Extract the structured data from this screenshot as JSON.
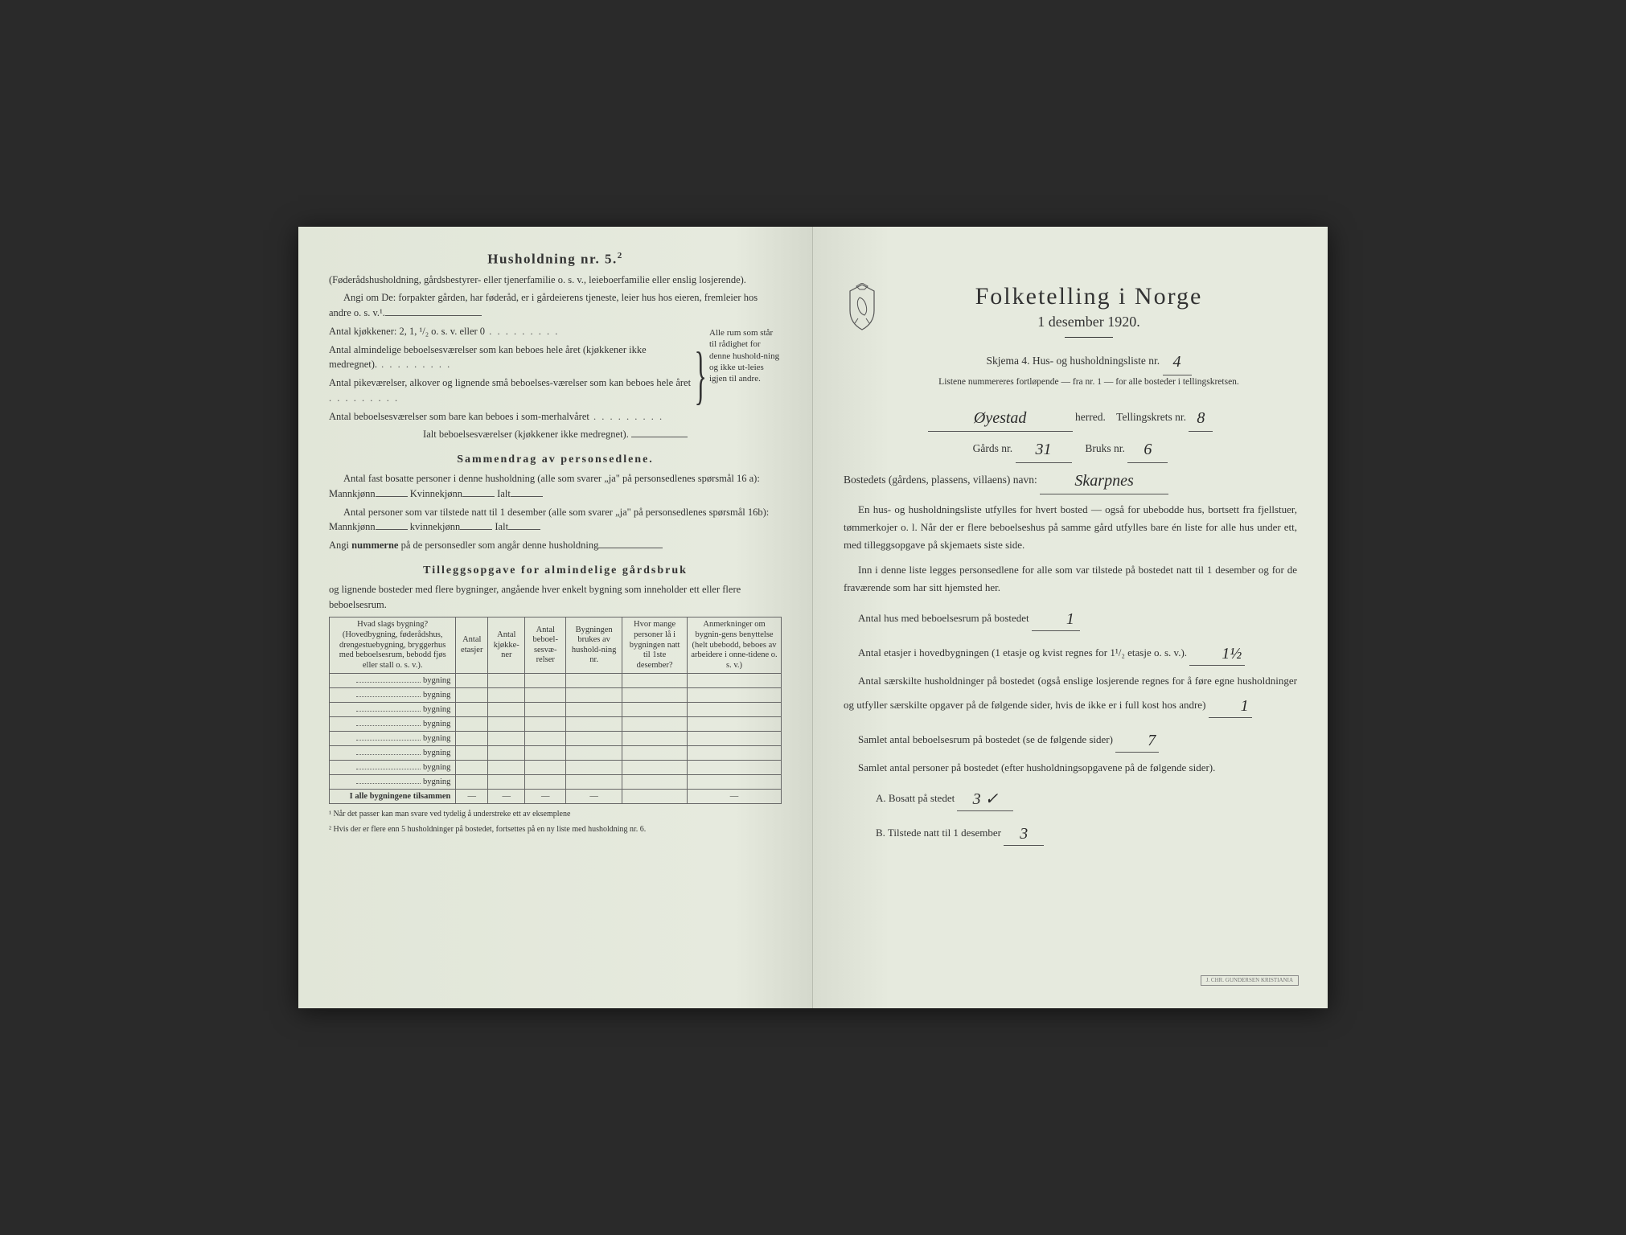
{
  "left": {
    "title": "Husholdning nr. 5.",
    "title_sup": "2",
    "intro1": "(Føderådshusholdning, gårdsbestyrer- eller tjenerfamilie o. s. v., leieboerfamilie eller enslig losjerende).",
    "intro2": "Angi om De:  forpakter gården, har føderåd, er i gårdeierens tjeneste, leier hus hos eieren, fremleier hos andre o. s. v.¹.",
    "kitchens": "Antal kjøkkener: 2, 1, ¹/₂ o. s. v. eller 0",
    "rooms1": "Antal almindelige beboelsesværelser som kan beboes hele året (kjøkkener ikke medregnet).",
    "rooms2": "Antal pikeværelser, alkover og lignende små beboelses-værelser som kan beboes hele året",
    "rooms3": "Antal beboelsesværelser som bare kan beboes i som-merhalvåret",
    "brace_text": "Alle rum som står til rådighet for denne hushold-ning og ikke ut-leies igjen til andre.",
    "ialt": "Ialt beboelsesværelser (kjøkkener ikke medregnet).",
    "section2": "Sammendrag av personsedlene.",
    "s2_l1": "Antal fast bosatte personer i denne husholdning (alle som svarer „ja\" på personsedlenes spørsmål 16 a): Mannkjønn",
    "s2_kvinne": "Kvinnekjønn",
    "s2_ialt": "Ialt",
    "s2_l2": "Antal personer som var tilstede natt til 1 desember (alle som svarer „ja\" på personsedlenes spørsmål 16b): Mannkjønn",
    "s2_kvinne2": "kvinnekjønn",
    "s2_l3_a": "Angi ",
    "s2_l3_b": "nummerne",
    "s2_l3_c": " på de personsedler som angår denne husholdning",
    "section3": "Tilleggsopgave for almindelige gårdsbruk",
    "s3_sub": "og lignende bosteder med flere bygninger, angående hver enkelt bygning som inneholder ett eller flere beboelsesrum.",
    "table": {
      "columns": [
        "Hvad slags bygning?\n(Hovedbygning, føderådshus, drengestuebygning, bryggerhus med beboelsesrum, bebodd fjøs eller stall o. s. v.).",
        "Antal etasjer",
        "Antal kjøkke-ner",
        "Antal beboel-sesvæ-relser",
        "Bygningen brukes av hushold-ning nr.",
        "Hvor mange personer lå i bygningen natt til 1ste desember?",
        "Anmerkninger om bygnin-gens benyttelse (helt ubebodd, beboes av arbeidere i onne-tidene o. s. v.)"
      ],
      "row_label": "bygning",
      "row_count": 8,
      "footer": "I alle bygningene tilsammen",
      "dashes": "—"
    },
    "footnote1": "¹  Når det passer kan man svare ved tydelig å understreke ett av eksemplene",
    "footnote2": "²  Hvis der er flere enn 5 husholdninger på bostedet, fortsettes på en ny liste med husholdning nr. 6."
  },
  "right": {
    "title": "Folketelling i Norge",
    "subtitle": "1 desember 1920.",
    "skjema": "Skjema 4.  Hus- og husholdningsliste nr.",
    "liste_nr": "4",
    "listene": "Listene nummereres fortløpende — fra nr. 1 — for alle bosteder i tellingskretsen.",
    "herred_val": "Øyestad",
    "herred_lbl": "herred.",
    "krets_lbl": "Tellingskrets nr.",
    "krets_val": "8",
    "gards_lbl": "Gårds nr.",
    "gards_val": "31",
    "bruks_lbl": "Bruks nr.",
    "bruks_val": "6",
    "bosted_lbl": "Bostedets (gårdens, plassens, villaens) navn:",
    "bosted_val": "Skarpnes",
    "para1": "En hus- og husholdningsliste utfylles for hvert bosted — også for ubebodde hus, bortsett fra fjellstuer, tømmerkojer o. l. Når der er flere beboelseshus på samme gård utfylles bare én liste for alle hus under ett, med tilleggsopgave på skjemaets siste side.",
    "para2": "Inn i denne liste legges personsedlene for alle som var tilstede på bostedet natt til 1 desember og for de fraværende som har sitt hjemsted her.",
    "q1": "Antal hus med beboelsesrum på bostedet",
    "q1_val": "1",
    "q2a": "Antal etasjer i hovedbygningen (1 etasje og kvist regnes for 1¹/₂ etasje o. s. v.).",
    "q2_val": "1½",
    "q3": "Antal særskilte husholdninger på bostedet (også enslige losjerende regnes for å føre egne husholdninger og utfyller særskilte opgaver på de følgende sider, hvis de ikke er i full kost hos andre)",
    "q3_val": "1",
    "q4": "Samlet antal beboelsesrum på bostedet (se de følgende sider)",
    "q4_val": "7",
    "q5": "Samlet antal personer på bostedet (efter husholdningsopgavene på de følgende sider).",
    "qA": "A.  Bosatt på stedet",
    "qA_val": "3 ✓",
    "qB": "B.  Tilstede natt til 1 desember",
    "qB_val": "3",
    "stamp": "J. CHR. GUNDERSEN\nKRISTIANIA"
  }
}
